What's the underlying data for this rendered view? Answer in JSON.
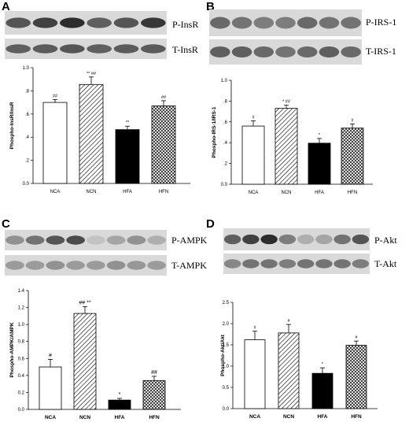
{
  "panels": [
    {
      "letter": "A",
      "blots": [
        "P-InsR",
        "T-InsR"
      ],
      "band_strength": [
        [
          0.75,
          0.85,
          0.95,
          0.7,
          0.75,
          0.9
        ],
        [
          0.7,
          0.72,
          0.75,
          0.7,
          0.72,
          0.72
        ]
      ]
    },
    {
      "letter": "B",
      "blots": [
        "P-IRS-1",
        "T-IRS-1"
      ],
      "band_strength": [
        [
          0.65,
          0.6,
          0.55,
          0.55,
          0.65,
          0.6,
          0.6
        ],
        [
          0.7,
          0.7,
          0.65,
          0.6,
          0.65,
          0.7,
          0.65
        ]
      ]
    },
    {
      "letter": "C",
      "blots": [
        "P-AMPK",
        "T-AMPK"
      ],
      "band_strength": [
        [
          0.45,
          0.6,
          0.75,
          0.8,
          0.2,
          0.35,
          0.45,
          0.3
        ],
        [
          0.4,
          0.4,
          0.45,
          0.4,
          0.4,
          0.45,
          0.42,
          0.4
        ]
      ]
    },
    {
      "letter": "D",
      "blots": [
        "P-Akt",
        "T-Akt"
      ],
      "band_strength": [
        [
          0.7,
          0.85,
          0.95,
          0.55,
          0.3,
          0.35,
          0.6,
          0.75
        ],
        [
          0.5,
          0.6,
          0.6,
          0.55,
          0.6,
          0.6,
          0.6,
          0.55
        ]
      ]
    }
  ],
  "chart_data": [
    {
      "type": "bar",
      "panel": "A",
      "categories": [
        "NCA",
        "NCN",
        "HFA",
        "HFN"
      ],
      "values": [
        0.7,
        0.855,
        0.465,
        0.67
      ],
      "errors": [
        0.025,
        0.065,
        0.03,
        0.045
      ],
      "significance": [
        "##",
        "** ##",
        "**",
        "##"
      ],
      "fills": [
        "white",
        "diagonal",
        "black",
        "crosshatch"
      ],
      "ylabel": "Phospho-InsR/InsR",
      "ylim": [
        0,
        1.0
      ],
      "yticks": [
        0,
        0.2,
        0.4,
        0.6,
        0.8,
        1.0
      ],
      "ytick_labels": [
        "0.0",
        ".2",
        ".4",
        ".6",
        ".8",
        "1.0"
      ]
    },
    {
      "type": "bar",
      "panel": "B",
      "categories": [
        "NCA",
        "NCN",
        "HFA",
        "HFN"
      ],
      "values": [
        0.56,
        0.73,
        0.395,
        0.54
      ],
      "errors": [
        0.05,
        0.03,
        0.045,
        0.04
      ],
      "significance": [
        "#",
        "* ##",
        "*",
        "#"
      ],
      "fills": [
        "white",
        "diagonal",
        "black",
        "crosshatch"
      ],
      "ylabel": "Phospho-IRS-1/IRS-1",
      "ylim": [
        0,
        1.0
      ],
      "yticks": [
        0,
        0.2,
        0.4,
        0.6,
        0.8,
        1.0
      ],
      "ytick_labels": [
        "0.0",
        ".2",
        ".4",
        ".6",
        ".8",
        "1.0"
      ]
    },
    {
      "type": "bar",
      "panel": "C",
      "categories": [
        "NCA",
        "NCN",
        "HFA",
        "HFN"
      ],
      "values": [
        0.5,
        1.13,
        0.11,
        0.34
      ],
      "errors": [
        0.09,
        0.08,
        0.02,
        0.05
      ],
      "significance": [
        "#",
        "## **",
        "*",
        "##"
      ],
      "fills": [
        "white",
        "diagonal",
        "black",
        "crosshatch"
      ],
      "ylabel": "Phospho-AMPK/AMPK",
      "ylim": [
        0,
        1.4
      ],
      "yticks": [
        0,
        0.2,
        0.4,
        0.6,
        0.8,
        1.0,
        1.2,
        1.4
      ],
      "ytick_labels": [
        "0.0",
        "0.2",
        "0.4",
        "0.6",
        "0.8",
        "1.0",
        "1.2",
        "1.4"
      ]
    },
    {
      "type": "bar",
      "panel": "D",
      "categories": [
        "NCA",
        "NCN",
        "HFA",
        "HFN"
      ],
      "values": [
        1.62,
        1.78,
        0.83,
        1.49
      ],
      "errors": [
        0.2,
        0.2,
        0.13,
        0.1
      ],
      "significance": [
        "#",
        "#",
        "*",
        "#"
      ],
      "fills": [
        "white",
        "diagonal",
        "black",
        "crosshatch"
      ],
      "ylabel": "Phospho-Akt/Akt",
      "ylim": [
        0,
        2.5
      ],
      "yticks": [
        0,
        0.5,
        1.0,
        1.5,
        2.0,
        2.5
      ],
      "ytick_labels": [
        "0.0",
        "0.5",
        "1.0",
        "1.5",
        "2.0",
        "2.5"
      ]
    }
  ]
}
